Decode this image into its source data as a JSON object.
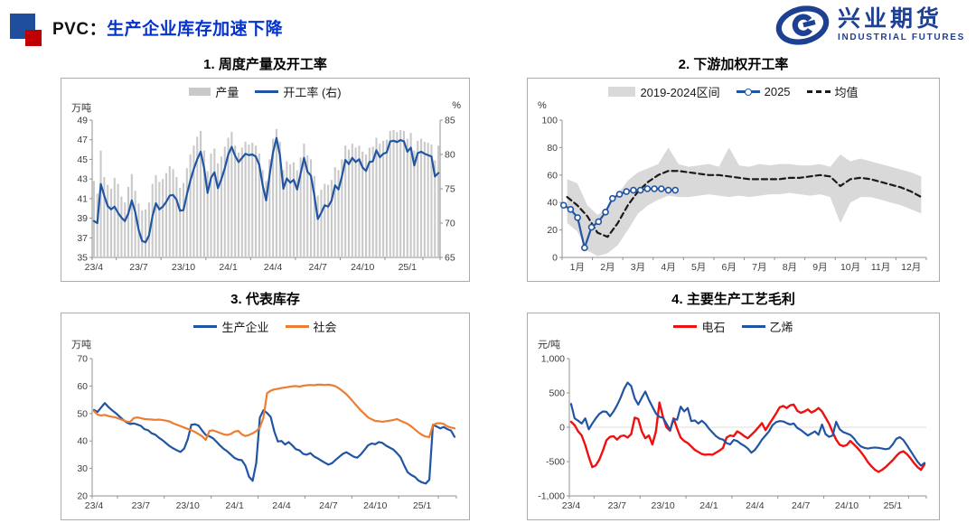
{
  "header": {
    "product": "PVC：",
    "headline": "生产企业库存加速下降",
    "headline_color": "#0433CC",
    "bullet_blue": "#1F4E9C",
    "bullet_red": "#C00000"
  },
  "logo": {
    "cn": "兴业期货",
    "en": "INDUSTRIAL FUTURES",
    "color": "#1E4093"
  },
  "chart_data": [
    {
      "id": "c1",
      "type": "bar+line",
      "title": "1. 周度产量及开工率",
      "unit_left": "万吨",
      "unit_right": "%",
      "margins": {
        "l": 34,
        "r": 32,
        "t": 46,
        "b": 26
      },
      "y_left": {
        "min": 35,
        "max": 49,
        "tick_values": [
          35,
          37,
          39,
          41,
          43,
          45,
          47,
          49
        ],
        "ticks": [
          "35",
          "37",
          "39",
          "41",
          "43",
          "45",
          "47",
          "49"
        ]
      },
      "y_right": {
        "min": 65,
        "max": 85,
        "tick_values": [
          65,
          70,
          75,
          80,
          85
        ],
        "ticks": [
          "65",
          "70",
          "75",
          "80",
          "85"
        ]
      },
      "x_mode": "weekly",
      "n": 101,
      "x_ticks": [
        "23/4",
        "23/7",
        "23/10",
        "24/1",
        "24/4",
        "24/7",
        "24/10",
        "25/1"
      ],
      "x_tick_idx": [
        0,
        13,
        26,
        39,
        52,
        65,
        78,
        91
      ],
      "legend": [
        {
          "kind": "bar",
          "color": "#C9C9C9",
          "label": "产量"
        },
        {
          "kind": "line",
          "color": "#2155A3",
          "label": "开工率 (右)"
        }
      ],
      "series": [
        {
          "name": "产量",
          "type": "bar",
          "axis": "left",
          "color": "#C9C9C9",
          "values": [
            42.8,
            41.5,
            45.9,
            43.2,
            42.4,
            42.0,
            43.1,
            42.5,
            41.2,
            40.6,
            42.2,
            43.5,
            41.8,
            40.5,
            39.8,
            39.9,
            40.6,
            42.5,
            43.4,
            42.7,
            43.0,
            43.6,
            44.3,
            44.0,
            43.2,
            42.1,
            42.6,
            44.1,
            45.5,
            46.4,
            47.3,
            47.9,
            45.9,
            43.8,
            45.6,
            46.1,
            44.6,
            45.3,
            46.3,
            47.2,
            47.8,
            46.4,
            45.7,
            46.2,
            46.8,
            46.5,
            46.7,
            46.4,
            45.6,
            43.9,
            42.8,
            45.0,
            47.1,
            48.1,
            46.8,
            43.9,
            44.8,
            44.5,
            44.7,
            43.9,
            45.2,
            46.6,
            45.4,
            45.0,
            43.3,
            41.3,
            41.9,
            42.5,
            42.4,
            42.9,
            44.2,
            43.9,
            45.0,
            46.4,
            46.0,
            46.6,
            46.2,
            46.4,
            45.8,
            45.5,
            46.2,
            46.3,
            47.2,
            46.6,
            46.9,
            47.0,
            47.9,
            48.0,
            47.8,
            48.0,
            47.9,
            47.1,
            47.7,
            45.9,
            46.9,
            47.1,
            46.8,
            46.7,
            46.5,
            44.9,
            46.4
          ]
        },
        {
          "name": "开工率 (右)",
          "type": "line",
          "axis": "right",
          "color": "#2155A3",
          "width": 2.2,
          "values": [
            70.3,
            70.0,
            75.7,
            74.0,
            72.5,
            72.0,
            72.4,
            71.5,
            70.8,
            70.3,
            71.4,
            73.3,
            71.6,
            69.0,
            67.4,
            67.2,
            68.2,
            71.0,
            72.9,
            72.0,
            72.4,
            73.1,
            74.0,
            74.1,
            73.4,
            71.8,
            71.9,
            74.2,
            76.2,
            77.9,
            79.3,
            80.4,
            78.0,
            74.4,
            76.6,
            77.4,
            75.1,
            76.4,
            78.0,
            80.0,
            81.1,
            79.8,
            78.9,
            79.5,
            80.1,
            79.9,
            80.0,
            79.7,
            78.5,
            75.5,
            73.3,
            77.0,
            80.3,
            82.4,
            79.9,
            75.0,
            76.5,
            75.9,
            76.3,
            74.9,
            77.2,
            79.5,
            77.5,
            76.9,
            74.0,
            70.6,
            71.5,
            72.6,
            72.4,
            73.3,
            75.5,
            74.9,
            76.8,
            79.2,
            78.6,
            79.5,
            78.9,
            79.3,
            78.1,
            77.6,
            78.9,
            79.0,
            80.6,
            79.6,
            80.1,
            80.3,
            81.9,
            82.0,
            81.8,
            82.1,
            81.9,
            80.4,
            81.0,
            78.4,
            80.2,
            80.4,
            80.1,
            79.9,
            79.7,
            76.8,
            77.3
          ]
        }
      ]
    },
    {
      "id": "c2",
      "type": "band+line",
      "title": "2. 下游加权开工率",
      "unit_left": "%",
      "margins": {
        "l": 38,
        "r": 14,
        "t": 46,
        "b": 26
      },
      "y_left": {
        "min": 0,
        "max": 100,
        "tick_values": [
          0,
          20,
          40,
          60,
          80,
          100
        ],
        "ticks": [
          "0",
          "20",
          "40",
          "60",
          "80",
          "100"
        ]
      },
      "x_mode": "months",
      "x_ticks": [
        "1月",
        "2月",
        "3月",
        "4月",
        "5月",
        "6月",
        "7月",
        "8月",
        "9月",
        "10月",
        "11月",
        "12月"
      ],
      "legend": [
        {
          "kind": "band",
          "color": "#D9D9D9",
          "label": "2019-2024区间"
        },
        {
          "kind": "line-marker",
          "color": "#2155A3",
          "label": "2025"
        },
        {
          "kind": "dash",
          "color": "#1A1A1A",
          "label": "均值"
        }
      ],
      "band": {
        "name": "2019-2024区间",
        "color": "#D9D9D9",
        "upper": [
          57,
          54,
          38,
          31,
          36,
          46,
          56,
          62,
          65,
          68,
          80,
          68,
          66,
          67,
          68,
          66,
          80,
          67,
          66,
          68,
          67,
          68,
          68,
          67,
          67,
          68,
          66,
          75,
          70,
          72,
          70,
          68,
          66,
          64,
          62,
          59
        ],
        "lower": [
          25,
          19,
          5,
          1,
          3,
          9,
          20,
          32,
          38,
          42,
          45,
          44,
          44,
          45,
          46,
          45,
          44,
          45,
          44,
          45,
          46,
          46,
          47,
          46,
          45,
          46,
          44,
          25,
          40,
          44,
          44,
          42,
          40,
          38,
          35,
          32
        ]
      },
      "series": [
        {
          "name": "均值",
          "type": "dash",
          "axis": "left",
          "color": "#1A1A1A",
          "width": 2.2,
          "values": [
            44,
            38,
            30,
            18,
            15,
            25,
            38,
            48,
            55,
            60,
            63,
            63,
            62,
            61,
            60,
            60,
            59,
            58,
            57,
            57,
            57,
            57,
            58,
            58,
            59,
            60,
            59,
            52,
            57,
            58,
            57,
            55,
            53,
            51,
            48,
            44
          ]
        },
        {
          "name": "2025",
          "type": "line-marker",
          "axis": "left",
          "color": "#2155A3",
          "width": 2.2,
          "x": [
            0.05,
            0.28,
            0.51,
            0.74,
            0.97,
            1.2,
            1.43,
            1.66,
            1.89,
            2.12,
            2.35,
            2.58,
            2.81,
            3.04,
            3.27,
            3.5,
            3.73
          ],
          "values": [
            38,
            35,
            29,
            7,
            22,
            26,
            33,
            43,
            46,
            48,
            49,
            49,
            50,
            50,
            50,
            49,
            49
          ]
        }
      ]
    },
    {
      "id": "c3",
      "type": "line",
      "title": "3. 代表库存",
      "unit_left": "万吨",
      "margins": {
        "l": 34,
        "r": 14,
        "t": 50,
        "b": 26
      },
      "y_left": {
        "min": 20,
        "max": 70,
        "tick_values": [
          20,
          30,
          40,
          50,
          60,
          70
        ],
        "ticks": [
          "20",
          "30",
          "40",
          "50",
          "60",
          "70"
        ]
      },
      "x_mode": "weekly",
      "n": 101,
      "x_ticks": [
        "23/4",
        "23/7",
        "23/10",
        "24/1",
        "24/4",
        "24/7",
        "24/10",
        "25/1"
      ],
      "x_tick_idx": [
        0,
        13,
        26,
        39,
        52,
        65,
        78,
        91
      ],
      "legend": [
        {
          "kind": "line",
          "color": "#2155A3",
          "label": "生产企业"
        },
        {
          "kind": "line",
          "color": "#ED7D31",
          "label": "社会"
        }
      ],
      "series": [
        {
          "name": "生产企业",
          "type": "line",
          "axis": "left",
          "color": "#2155A3",
          "width": 2.2,
          "values": [
            51.3,
            50.6,
            52.2,
            53.8,
            52.4,
            51.2,
            50.2,
            49.0,
            47.8,
            46.8,
            46.2,
            46.4,
            46.0,
            45.5,
            44.3,
            43.9,
            42.8,
            42.3,
            41.2,
            40.3,
            39.2,
            38.1,
            37.3,
            36.6,
            36.0,
            37.2,
            40.6,
            45.9,
            46.1,
            45.6,
            43.8,
            42.2,
            41.7,
            41.0,
            39.7,
            38.3,
            37.1,
            36.2,
            35.0,
            33.8,
            33.2,
            33.0,
            31.0,
            27.0,
            25.5,
            32.0,
            48.5,
            51.2,
            50.2,
            48.8,
            43.5,
            39.8,
            40.0,
            38.7,
            39.6,
            38.4,
            37.0,
            36.6,
            35.3,
            35.0,
            35.6,
            34.4,
            33.7,
            32.9,
            32.1,
            31.4,
            31.9,
            33.1,
            34.2,
            35.3,
            35.9,
            35.1,
            34.3,
            33.9,
            35.1,
            36.7,
            38.4,
            39.1,
            38.8,
            39.6,
            39.3,
            38.3,
            37.6,
            36.9,
            35.6,
            34.1,
            31.2,
            28.6,
            27.6,
            26.9,
            25.6,
            24.9,
            24.5,
            25.9,
            45.9,
            45.3,
            44.6,
            45.1,
            44.3,
            43.8,
            41.5
          ]
        },
        {
          "name": "社会",
          "type": "line",
          "axis": "left",
          "color": "#ED7D31",
          "width": 2.2,
          "values": [
            50.9,
            49.6,
            49.3,
            49.5,
            49.1,
            48.8,
            48.6,
            48.1,
            47.6,
            47.1,
            46.9,
            48.3,
            48.6,
            48.3,
            48.0,
            47.9,
            47.8,
            47.7,
            47.8,
            47.6,
            47.4,
            47.1,
            46.4,
            45.9,
            45.4,
            44.9,
            44.4,
            43.9,
            43.3,
            42.5,
            41.7,
            40.4,
            43.6,
            43.9,
            43.4,
            42.9,
            42.4,
            42.2,
            42.6,
            43.4,
            43.7,
            42.4,
            41.8,
            42.2,
            42.8,
            43.6,
            44.9,
            48.5,
            57.4,
            58.3,
            58.8,
            59.0,
            59.3,
            59.5,
            59.7,
            59.9,
            60.0,
            59.8,
            60.1,
            60.3,
            60.4,
            60.3,
            60.5,
            60.5,
            60.4,
            60.5,
            60.3,
            59.9,
            59.1,
            58.1,
            57.0,
            55.6,
            54.1,
            52.6,
            51.1,
            49.9,
            48.6,
            47.9,
            47.3,
            47.2,
            47.0,
            47.2,
            47.4,
            47.6,
            48.0,
            47.4,
            46.8,
            46.2,
            45.3,
            44.2,
            43.1,
            42.2,
            41.6,
            41.4,
            45.8,
            46.4,
            46.5,
            46.2,
            45.3,
            44.9,
            44.6
          ]
        }
      ]
    },
    {
      "id": "c4",
      "type": "line",
      "title": "4. 主要生产工艺毛利",
      "unit_left": "元/吨",
      "margins": {
        "l": 46,
        "r": 14,
        "t": 50,
        "b": 26
      },
      "zero_line": true,
      "y_left": {
        "min": -1000,
        "max": 1000,
        "tick_values": [
          -1000,
          -500,
          0,
          500,
          1000
        ],
        "ticks": [
          "-1,000",
          "-500",
          "0",
          "500",
          "1,000"
        ]
      },
      "x_mode": "weekly",
      "n": 101,
      "x_ticks": [
        "23/4",
        "23/7",
        "23/10",
        "24/1",
        "24/4",
        "24/7",
        "24/10",
        "25/1"
      ],
      "x_tick_idx": [
        0,
        13,
        26,
        39,
        52,
        65,
        78,
        91
      ],
      "legend": [
        {
          "kind": "line",
          "color": "#F01010",
          "label": "电石"
        },
        {
          "kind": "line",
          "color": "#2155A3",
          "label": "乙烯"
        }
      ],
      "series": [
        {
          "name": "电石",
          "type": "line",
          "axis": "left",
          "color": "#F01010",
          "width": 2.4,
          "values": [
            80,
            30,
            -60,
            -120,
            -260,
            -430,
            -580,
            -555,
            -470,
            -340,
            -190,
            -140,
            -130,
            -180,
            -130,
            -120,
            -150,
            -100,
            140,
            120,
            -60,
            -160,
            -120,
            -250,
            -60,
            360,
            150,
            0,
            -50,
            130,
            -20,
            -150,
            -200,
            -230,
            -280,
            -330,
            -360,
            -390,
            -400,
            -395,
            -400,
            -370,
            -340,
            -300,
            -150,
            -120,
            -130,
            -60,
            -90,
            -130,
            -160,
            -110,
            -60,
            0,
            60,
            -40,
            40,
            120,
            200,
            290,
            310,
            280,
            320,
            330,
            240,
            210,
            230,
            260,
            215,
            240,
            280,
            230,
            140,
            50,
            -70,
            -180,
            -255,
            -275,
            -260,
            -200,
            -250,
            -300,
            -360,
            -430,
            -510,
            -570,
            -620,
            -650,
            -620,
            -580,
            -530,
            -480,
            -420,
            -370,
            -350,
            -390,
            -450,
            -520,
            -580,
            -620,
            -540
          ]
        },
        {
          "name": "乙烯",
          "type": "line",
          "axis": "left",
          "color": "#2155A3",
          "width": 2.2,
          "values": [
            340,
            130,
            95,
            55,
            130,
            -30,
            55,
            130,
            195,
            230,
            225,
            160,
            230,
            320,
            430,
            560,
            650,
            600,
            420,
            330,
            430,
            520,
            400,
            300,
            200,
            150,
            140,
            50,
            -40,
            120,
            110,
            300,
            230,
            280,
            90,
            100,
            55,
            95,
            50,
            -20,
            -75,
            -130,
            -165,
            -180,
            -230,
            -250,
            -185,
            -200,
            -240,
            -270,
            -310,
            -370,
            -330,
            -260,
            -180,
            -120,
            -60,
            30,
            75,
            90,
            85,
            60,
            40,
            55,
            -10,
            -40,
            -80,
            -120,
            -90,
            -60,
            -110,
            40,
            -100,
            -140,
            -120,
            80,
            -30,
            -70,
            -90,
            -110,
            -160,
            -230,
            -280,
            -300,
            -310,
            -300,
            -295,
            -300,
            -310,
            -320,
            -310,
            -250,
            -170,
            -145,
            -185,
            -260,
            -340,
            -420,
            -500,
            -560,
            -520
          ]
        }
      ]
    }
  ]
}
